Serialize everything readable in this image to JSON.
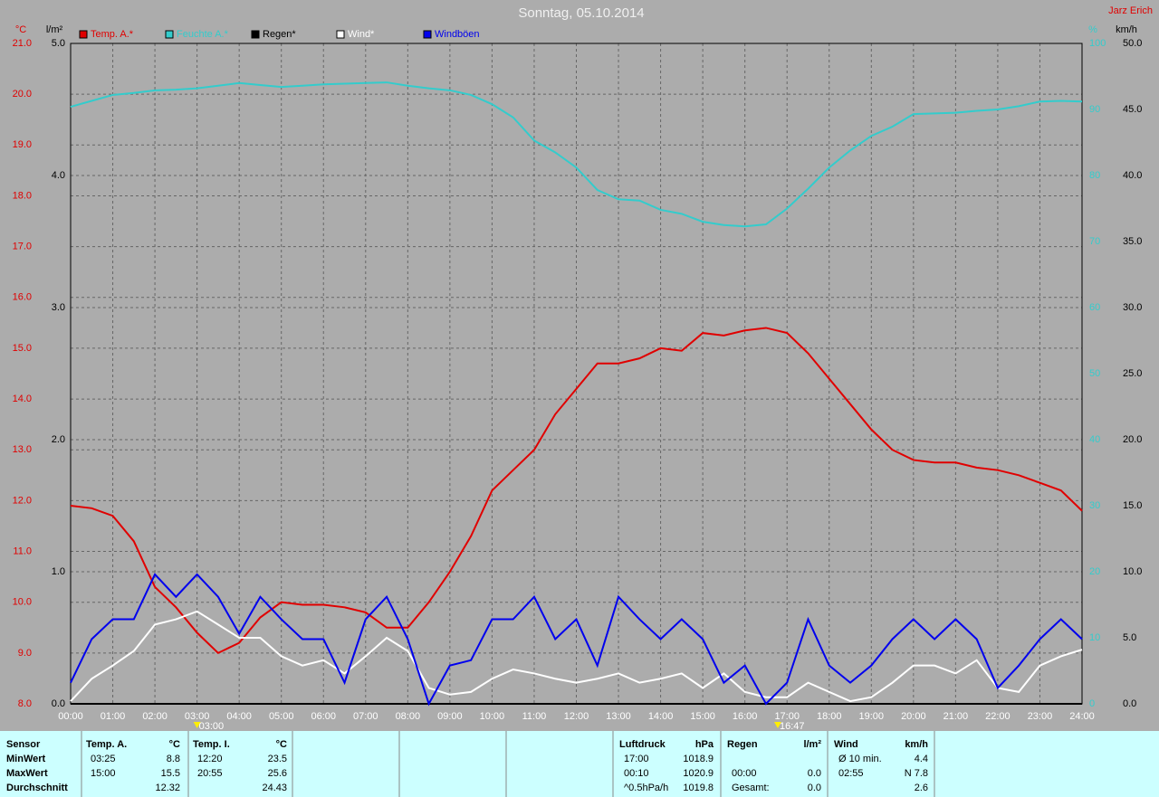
{
  "chart_data": {
    "type": "line",
    "title": "Sonntag, 05.10.2014",
    "author": "Jarz Erich",
    "x": [
      0,
      0.5,
      1,
      1.5,
      2,
      2.5,
      3,
      3.5,
      4,
      4.5,
      5,
      5.5,
      6,
      6.5,
      7,
      7.5,
      8,
      8.5,
      9,
      9.5,
      10,
      10.5,
      11,
      11.5,
      12,
      12.5,
      13,
      13.5,
      14,
      14.5,
      15,
      15.5,
      16,
      16.5,
      17,
      17.5,
      18,
      18.5,
      19,
      19.5,
      20,
      20.5,
      21,
      21.5,
      22,
      22.5,
      23,
      23.5,
      24
    ],
    "xlim": [
      0,
      24
    ],
    "xticks": [
      {
        "value": 0,
        "label": "00:00"
      },
      {
        "value": 1,
        "label": "01:00"
      },
      {
        "value": 2,
        "label": "02:00"
      },
      {
        "value": 3,
        "label": "03:00"
      },
      {
        "value": 4,
        "label": "04:00"
      },
      {
        "value": 5,
        "label": "05:00"
      },
      {
        "value": 6,
        "label": "06:00"
      },
      {
        "value": 7,
        "label": "07:00"
      },
      {
        "value": 8,
        "label": "08:00"
      },
      {
        "value": 9,
        "label": "09:00"
      },
      {
        "value": 10,
        "label": "10:00"
      },
      {
        "value": 11,
        "label": "11:00"
      },
      {
        "value": 12,
        "label": "12:00"
      },
      {
        "value": 13,
        "label": "13:00"
      },
      {
        "value": 14,
        "label": "14:00"
      },
      {
        "value": 15,
        "label": "15:00"
      },
      {
        "value": 16,
        "label": "16:00"
      },
      {
        "value": 17,
        "label": "17:00"
      },
      {
        "value": 18,
        "label": "18:00"
      },
      {
        "value": 19,
        "label": "19:00"
      },
      {
        "value": 20,
        "label": "20:00"
      },
      {
        "value": 21,
        "label": "21:00"
      },
      {
        "value": 22,
        "label": "22:00"
      },
      {
        "value": 23,
        "label": "23:00"
      },
      {
        "value": 24,
        "label": "24:00"
      }
    ],
    "grid": true,
    "axes": {
      "temp": {
        "label": "°C",
        "color": "#e00000",
        "lim": [
          8,
          21
        ],
        "ticks": [
          {
            "value": 8,
            "label": "8.0"
          },
          {
            "value": 9,
            "label": "9.0"
          },
          {
            "value": 10,
            "label": "10.0"
          },
          {
            "value": 11,
            "label": "11.0"
          },
          {
            "value": 12,
            "label": "12.0"
          },
          {
            "value": 13,
            "label": "13.0"
          },
          {
            "value": 14,
            "label": "14.0"
          },
          {
            "value": 15,
            "label": "15.0"
          },
          {
            "value": 16,
            "label": "16.0"
          },
          {
            "value": 17,
            "label": "17.0"
          },
          {
            "value": 18,
            "label": "18.0"
          },
          {
            "value": 19,
            "label": "19.0"
          },
          {
            "value": 20,
            "label": "20.0"
          },
          {
            "value": 21,
            "label": "21.0"
          }
        ]
      },
      "rain": {
        "label": "l/m²",
        "color": "#000000",
        "lim": [
          0,
          5
        ],
        "ticks": [
          {
            "value": 0,
            "label": "0.0"
          },
          {
            "value": 1,
            "label": "1.0"
          },
          {
            "value": 2,
            "label": "2.0"
          },
          {
            "value": 3,
            "label": "3.0"
          },
          {
            "value": 4,
            "label": "4.0"
          },
          {
            "value": 5,
            "label": "5.0"
          }
        ]
      },
      "humidity": {
        "label": "%",
        "color": "#33cccc",
        "lim": [
          0,
          100
        ],
        "ticks": [
          0,
          10,
          20,
          30,
          40,
          50,
          60,
          70,
          80,
          90,
          100
        ]
      },
      "wind": {
        "label": "km/h",
        "color": "#000000",
        "lim": [
          0,
          50
        ],
        "ticks": [
          {
            "value": 0,
            "label": "0.0"
          },
          {
            "value": 5,
            "label": "5.0"
          },
          {
            "value": 10,
            "label": "10.0"
          },
          {
            "value": 15,
            "label": "15.0"
          },
          {
            "value": 20,
            "label": "20.0"
          },
          {
            "value": 25,
            "label": "25.0"
          },
          {
            "value": 30,
            "label": "30.0"
          },
          {
            "value": 35,
            "label": "35.0"
          },
          {
            "value": 40,
            "label": "40.0"
          },
          {
            "value": 45,
            "label": "45.0"
          },
          {
            "value": 50,
            "label": "50.0"
          }
        ]
      }
    },
    "series": [
      {
        "name": "Temp. A.*",
        "color": "#e00000",
        "axis": "temp",
        "values": [
          11.9,
          11.85,
          11.7,
          11.2,
          10.3,
          9.9,
          9.4,
          9.0,
          9.2,
          9.7,
          10.0,
          9.95,
          9.95,
          9.9,
          9.8,
          9.5,
          9.5,
          10.0,
          10.6,
          11.3,
          12.2,
          12.6,
          13.0,
          13.7,
          14.2,
          14.7,
          14.7,
          14.8,
          15.0,
          14.95,
          15.3,
          15.25,
          15.35,
          15.4,
          15.3,
          14.9,
          14.4,
          13.9,
          13.4,
          13.0,
          12.8,
          12.75,
          12.75,
          12.65,
          12.6,
          12.5,
          12.35,
          12.2,
          11.8
        ]
      },
      {
        "name": "Feuchte A.*",
        "color": "#33cccc",
        "axis": "humidity",
        "values": [
          90.4,
          91.3,
          92.2,
          92.5,
          92.9,
          93,
          93.2,
          93.6,
          94,
          93.7,
          93.4,
          93.6,
          93.8,
          93.9,
          94,
          94.1,
          93.6,
          93.2,
          92.9,
          92.2,
          90.8,
          88.8,
          85.3,
          83.5,
          81.2,
          77.8,
          76.4,
          76.2,
          74.8,
          74.2,
          73,
          72.5,
          72.3,
          72.6,
          75,
          78,
          81.2,
          83.8,
          86,
          87.4,
          89.3,
          89.4,
          89.5,
          89.8,
          90,
          90.5,
          91.2,
          91.3,
          91.2
        ]
      },
      {
        "name": "Regen*",
        "color": "#000000",
        "axis": "rain",
        "values": [
          0,
          0,
          0,
          0,
          0,
          0,
          0,
          0,
          0,
          0,
          0,
          0,
          0,
          0,
          0,
          0,
          0,
          0,
          0,
          0,
          0,
          0,
          0,
          0,
          0,
          0,
          0,
          0,
          0,
          0,
          0,
          0,
          0,
          0,
          0,
          0,
          0,
          0,
          0,
          0,
          0,
          0,
          0,
          0,
          0,
          0,
          0,
          0,
          0
        ]
      },
      {
        "name": "Wind*",
        "color": "#ffffff",
        "axis": "wind",
        "values": [
          0.2,
          1.9,
          2.9,
          4.0,
          6.0,
          6.4,
          7.0,
          6.0,
          5.0,
          5.0,
          3.6,
          2.9,
          3.3,
          2.3,
          3.6,
          5.0,
          4.0,
          1.2,
          0.7,
          0.9,
          1.9,
          2.6,
          2.3,
          1.9,
          1.6,
          1.9,
          2.3,
          1.6,
          1.9,
          2.3,
          1.2,
          2.3,
          0.9,
          0.5,
          0.5,
          1.6,
          0.9,
          0.2,
          0.5,
          1.6,
          2.9,
          2.9,
          2.3,
          3.3,
          1.2,
          0.9,
          2.9,
          3.6,
          4.1
        ]
      },
      {
        "name": "Windböen",
        "color": "#0000ee",
        "axis": "wind",
        "values": [
          1.6,
          4.9,
          6.4,
          6.4,
          9.8,
          8.1,
          9.8,
          8.1,
          5.3,
          8.1,
          6.4,
          4.9,
          4.9,
          1.6,
          6.4,
          8.1,
          4.9,
          0,
          2.9,
          3.3,
          6.4,
          6.4,
          8.1,
          4.9,
          6.4,
          2.9,
          8.1,
          6.4,
          4.9,
          6.4,
          4.9,
          1.6,
          2.9,
          0,
          1.6,
          6.4,
          2.9,
          1.6,
          2.9,
          4.9,
          6.4,
          4.9,
          6.4,
          4.9,
          1.2,
          2.9,
          4.9,
          6.4,
          4.9
        ]
      }
    ],
    "markers": [
      {
        "x": 3,
        "label": "03:00"
      },
      {
        "x": 16.78,
        "label": "16:47"
      }
    ]
  },
  "table": {
    "row_labels": {
      "header": "Sensor",
      "rows": [
        "MinWert",
        "MaxWert",
        "Durchschnitt"
      ]
    },
    "columns": [
      {
        "title": "Temp. A.",
        "unit": "°C",
        "rows": [
          {
            "time": "03:25",
            "value": "8.8"
          },
          {
            "time": "15:00",
            "value": "15.5"
          },
          {
            "value": "12.32"
          }
        ]
      },
      {
        "title": "Temp. I.",
        "unit": "°C",
        "rows": [
          {
            "time": "12:20",
            "value": "23.5"
          },
          {
            "time": "20:55",
            "value": "25.6"
          },
          {
            "value": "24.43"
          }
        ]
      },
      {
        "title": "Luftdruck",
        "unit": "hPa",
        "rows": [
          {
            "time": "17:00",
            "value": "1018.9"
          },
          {
            "time": "00:10",
            "value": "1020.9"
          },
          {
            "time": "^0.5hPa/h",
            "value": "1019.8"
          }
        ]
      },
      {
        "title": "Regen",
        "unit": "l/m²",
        "rows": [
          null,
          {
            "time": "00:00",
            "value": "0.0"
          },
          {
            "time": "Gesamt:",
            "value": "0.0"
          }
        ]
      },
      {
        "title": "Wind",
        "unit": "km/h",
        "rows": [
          {
            "time": "Ø 10 min.",
            "value": "4.4"
          },
          {
            "time": "02:55",
            "value": "N 7.8"
          },
          {
            "value": "2.6"
          }
        ]
      }
    ]
  }
}
